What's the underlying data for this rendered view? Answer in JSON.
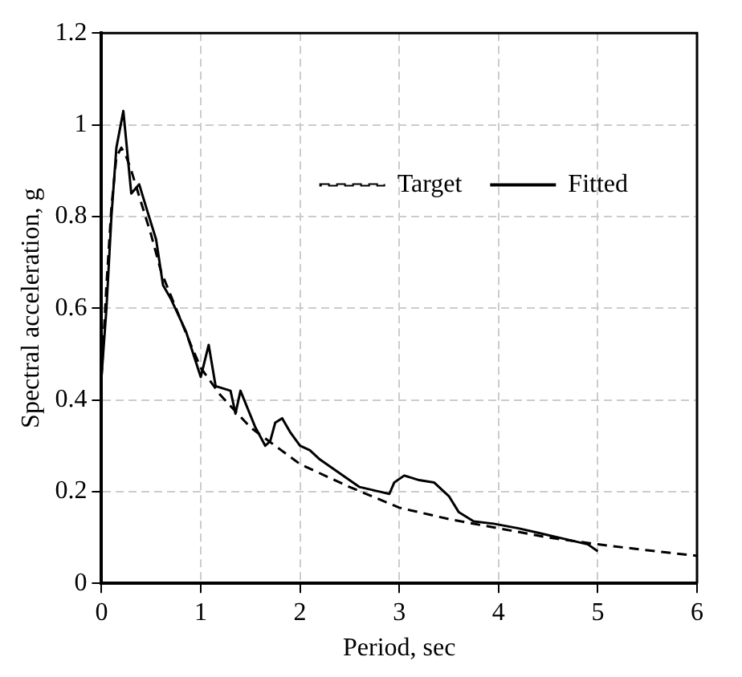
{
  "chart_data": {
    "type": "line",
    "xlabel": "Period, sec",
    "ylabel": "Spectral acceleration, g",
    "xlim": [
      0,
      6
    ],
    "ylim": [
      0,
      1.2
    ],
    "xticks": [
      0,
      1,
      2,
      3,
      4,
      5,
      6
    ],
    "yticks": [
      0,
      0.2,
      0.4,
      0.6,
      0.8,
      1,
      1.2
    ],
    "grid": true,
    "legend": "top right",
    "marker": "none",
    "series": [
      {
        "name": "Target",
        "color": "#000000",
        "line_style": "dashed",
        "x": [
          0,
          0.05,
          0.1,
          0.15,
          0.2,
          0.25,
          0.3,
          0.4,
          0.5,
          0.6,
          0.75,
          0.9,
          1,
          1.2,
          1.5,
          1.75,
          2,
          2.5,
          3,
          3.5,
          4,
          4.5,
          5,
          5.5,
          6
        ],
        "values": [
          0.45,
          0.65,
          0.82,
          0.93,
          0.95,
          0.93,
          0.9,
          0.83,
          0.76,
          0.68,
          0.6,
          0.52,
          0.47,
          0.41,
          0.34,
          0.3,
          0.26,
          0.21,
          0.165,
          0.14,
          0.12,
          0.1,
          0.085,
          0.072,
          0.06
        ]
      },
      {
        "name": "Fitted",
        "color": "#000000",
        "line_style": "solid",
        "x": [
          0,
          0.05,
          0.1,
          0.15,
          0.22,
          0.3,
          0.38,
          0.45,
          0.55,
          0.62,
          0.7,
          0.85,
          1,
          1.08,
          1.15,
          1.3,
          1.35,
          1.4,
          1.55,
          1.6,
          1.65,
          1.7,
          1.75,
          1.82,
          1.9,
          2,
          2.1,
          2.2,
          2.4,
          2.6,
          2.8,
          2.9,
          2.95,
          3.05,
          3.2,
          3.35,
          3.5,
          3.6,
          3.75,
          3.95,
          4.2,
          4.4,
          4.7,
          4.9,
          5
        ],
        "values": [
          0.45,
          0.6,
          0.8,
          0.95,
          1.03,
          0.85,
          0.87,
          0.82,
          0.75,
          0.65,
          0.62,
          0.55,
          0.45,
          0.52,
          0.43,
          0.42,
          0.37,
          0.42,
          0.34,
          0.32,
          0.3,
          0.31,
          0.35,
          0.36,
          0.33,
          0.3,
          0.29,
          0.27,
          0.24,
          0.21,
          0.2,
          0.195,
          0.22,
          0.235,
          0.225,
          0.22,
          0.19,
          0.155,
          0.135,
          0.13,
          0.12,
          0.11,
          0.095,
          0.085,
          0.07
        ]
      }
    ]
  }
}
